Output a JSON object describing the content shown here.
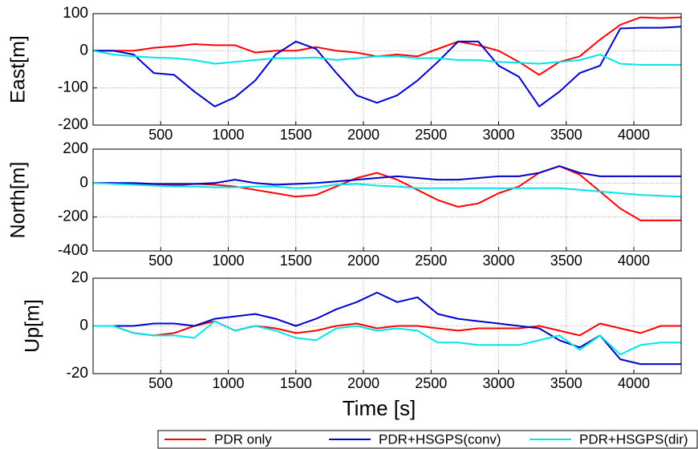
{
  "chart_data": [
    {
      "type": "line",
      "ylabel": "East[m]",
      "xlim": [
        0,
        4350
      ],
      "ylim": [
        -200,
        100
      ],
      "xticks": [
        500,
        1000,
        1500,
        2000,
        2500,
        3000,
        3500,
        4000
      ],
      "yticks": [
        -200,
        -100,
        0,
        100
      ],
      "grid": true,
      "x": [
        0,
        150,
        300,
        450,
        600,
        750,
        900,
        1050,
        1200,
        1350,
        1500,
        1650,
        1800,
        1950,
        2100,
        2250,
        2400,
        2550,
        2700,
        2850,
        3000,
        3150,
        3300,
        3450,
        3600,
        3750,
        3900,
        4050,
        4200,
        4350
      ],
      "series": [
        {
          "color": "#ff0000",
          "values": [
            0,
            0,
            0,
            8,
            12,
            18,
            15,
            15,
            -5,
            0,
            0,
            10,
            0,
            -5,
            -15,
            -10,
            -15,
            5,
            25,
            15,
            0,
            -30,
            -65,
            -30,
            -15,
            30,
            70,
            90,
            88,
            90
          ]
        },
        {
          "color": "#0000cc",
          "values": [
            0,
            0,
            -10,
            -60,
            -65,
            -110,
            -150,
            -125,
            -80,
            -10,
            25,
            5,
            -60,
            -120,
            -140,
            -120,
            -80,
            -30,
            25,
            25,
            -40,
            -70,
            -150,
            -110,
            -60,
            -40,
            60,
            62,
            62,
            65
          ]
        },
        {
          "color": "#00e5e5",
          "values": [
            0,
            -10,
            -15,
            -18,
            -20,
            -25,
            -35,
            -30,
            -25,
            -20,
            -20,
            -18,
            -25,
            -20,
            -15,
            -15,
            -20,
            -20,
            -25,
            -25,
            -30,
            -32,
            -35,
            -30,
            -25,
            -10,
            -35,
            -38,
            -38,
            -38
          ]
        }
      ]
    },
    {
      "type": "line",
      "ylabel": "North[m]",
      "xlim": [
        0,
        4350
      ],
      "ylim": [
        -400,
        200
      ],
      "xticks": [
        500,
        1000,
        1500,
        2000,
        2500,
        3000,
        3500,
        4000
      ],
      "yticks": [
        -400,
        -200,
        0,
        200
      ],
      "grid": true,
      "x": [
        0,
        150,
        300,
        450,
        600,
        750,
        900,
        1050,
        1200,
        1350,
        1500,
        1650,
        1800,
        1950,
        2100,
        2250,
        2400,
        2550,
        2700,
        2850,
        3000,
        3150,
        3300,
        3450,
        3600,
        3750,
        3900,
        4050,
        4200,
        4350
      ],
      "series": [
        {
          "color": "#ff0000",
          "values": [
            0,
            0,
            -5,
            -10,
            -15,
            -5,
            -10,
            -20,
            -40,
            -60,
            -80,
            -70,
            -20,
            30,
            60,
            20,
            -40,
            -100,
            -140,
            -120,
            -60,
            -20,
            60,
            100,
            50,
            -50,
            -150,
            -220,
            -220,
            -220
          ]
        },
        {
          "color": "#0000cc",
          "values": [
            0,
            0,
            0,
            -5,
            -5,
            -5,
            0,
            20,
            0,
            -10,
            -5,
            0,
            10,
            20,
            30,
            40,
            30,
            20,
            20,
            30,
            40,
            40,
            60,
            100,
            60,
            40,
            40,
            40,
            40,
            40
          ]
        },
        {
          "color": "#00e5e5",
          "values": [
            0,
            -5,
            -10,
            -15,
            -20,
            -20,
            -25,
            -25,
            -20,
            -20,
            -30,
            -25,
            -10,
            -5,
            -15,
            -20,
            -30,
            -30,
            -30,
            -30,
            -30,
            -30,
            -30,
            -30,
            -40,
            -50,
            -60,
            -70,
            -75,
            -80
          ]
        }
      ]
    },
    {
      "type": "line",
      "ylabel": "Up[m]",
      "xlabel": "Time [s]",
      "xlim": [
        0,
        4350
      ],
      "ylim": [
        -20,
        20
      ],
      "xticks": [
        500,
        1000,
        1500,
        2000,
        2500,
        3000,
        3500,
        4000
      ],
      "yticks": [
        -20,
        0,
        20
      ],
      "grid": true,
      "x": [
        0,
        150,
        300,
        450,
        600,
        750,
        900,
        1050,
        1200,
        1350,
        1500,
        1650,
        1800,
        1950,
        2100,
        2250,
        2400,
        2550,
        2700,
        2850,
        3000,
        3150,
        3300,
        3450,
        3600,
        3750,
        3900,
        4050,
        4200,
        4350
      ],
      "series": [
        {
          "name": "PDR only",
          "color": "#ff0000",
          "values": [
            0,
            0,
            -3,
            -4,
            -3,
            0,
            2,
            -2,
            0,
            -1,
            -3,
            -2,
            0,
            1,
            -1,
            0,
            0,
            -1,
            -2,
            -1,
            -1,
            -1,
            0,
            -2,
            -4,
            1,
            -1,
            -3,
            0,
            0
          ]
        },
        {
          "name": "PDR+HSGPS(conv)",
          "color": "#0000cc",
          "values": [
            0,
            0,
            0,
            1,
            1,
            0,
            3,
            4,
            5,
            3,
            0,
            3,
            7,
            10,
            14,
            10,
            12,
            5,
            3,
            2,
            1,
            0,
            -1,
            -6,
            -9,
            -4,
            -14,
            -16,
            -16,
            -16
          ]
        },
        {
          "name": "PDR+HSGPS(dir)",
          "color": "#00e5e5",
          "values": [
            0,
            0,
            -3,
            -4,
            -4,
            -5,
            2,
            -2,
            0,
            -2,
            -5,
            -6,
            -1,
            0,
            -2,
            -1,
            -2,
            -7,
            -7,
            -8,
            -8,
            -8,
            -6,
            -4,
            -10,
            -4,
            -12,
            -8,
            -7,
            -7
          ]
        }
      ]
    }
  ]
}
